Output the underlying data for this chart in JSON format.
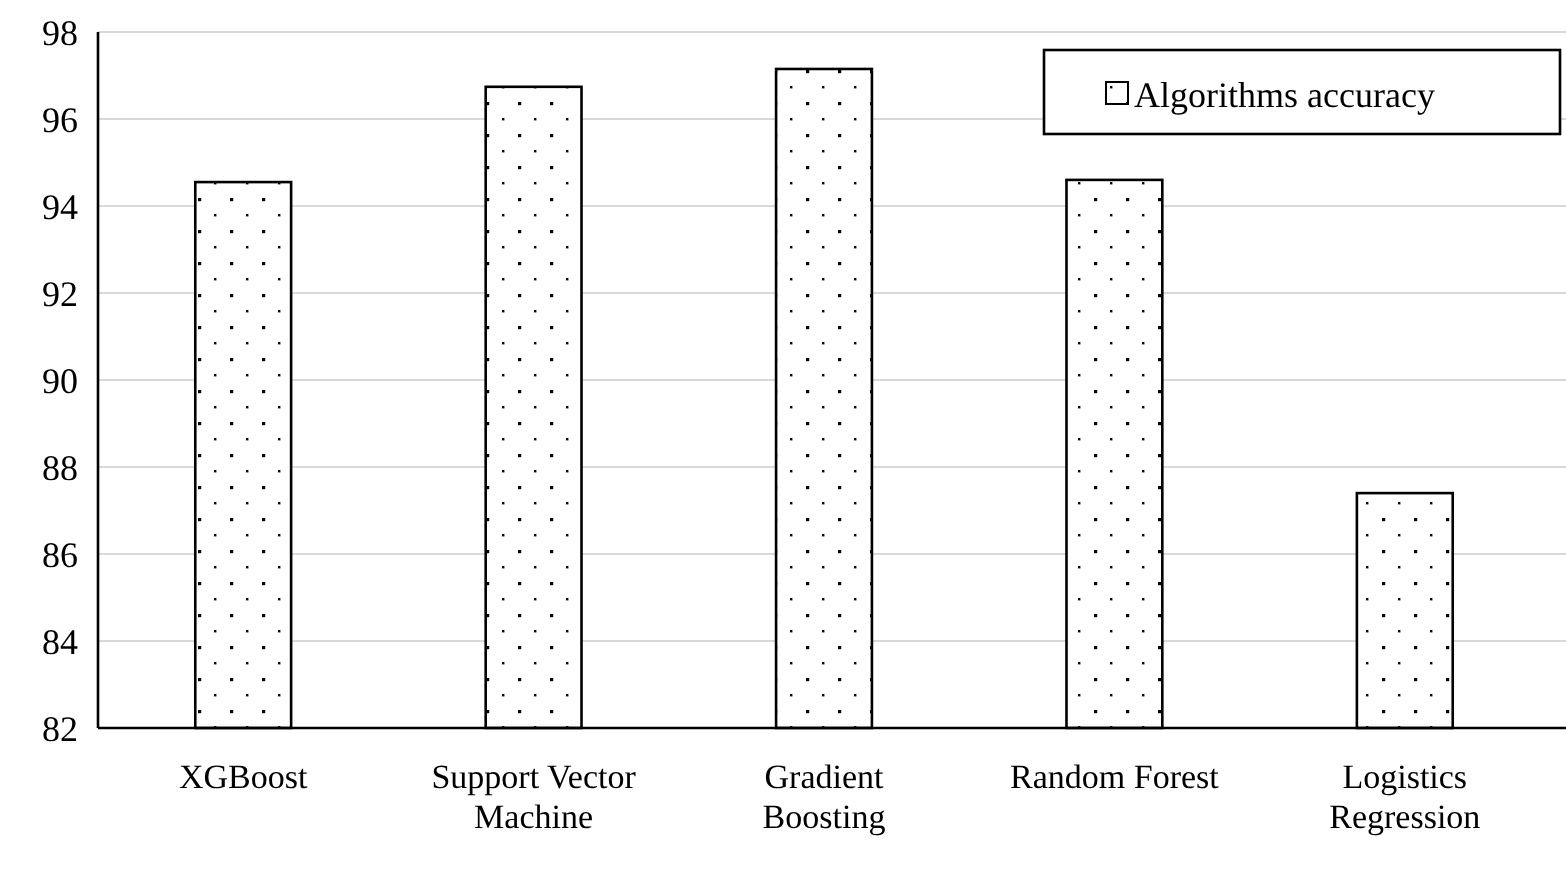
{
  "chart_data": {
    "type": "bar",
    "categories": [
      "XGBoost",
      "Support Vector Machine",
      "Gradient Boosting",
      "Random Forest",
      "Logistics Regression"
    ],
    "series": [
      {
        "name": "Algorithms accuracy",
        "color": "#000000",
        "values": [
          94.55,
          96.74,
          97.15,
          94.6,
          87.4
        ]
      }
    ],
    "ylim": [
      82,
      98
    ],
    "yticks": [
      82,
      84,
      86,
      88,
      90,
      92,
      94,
      96,
      98
    ],
    "grid": "y",
    "legend": "top right"
  }
}
